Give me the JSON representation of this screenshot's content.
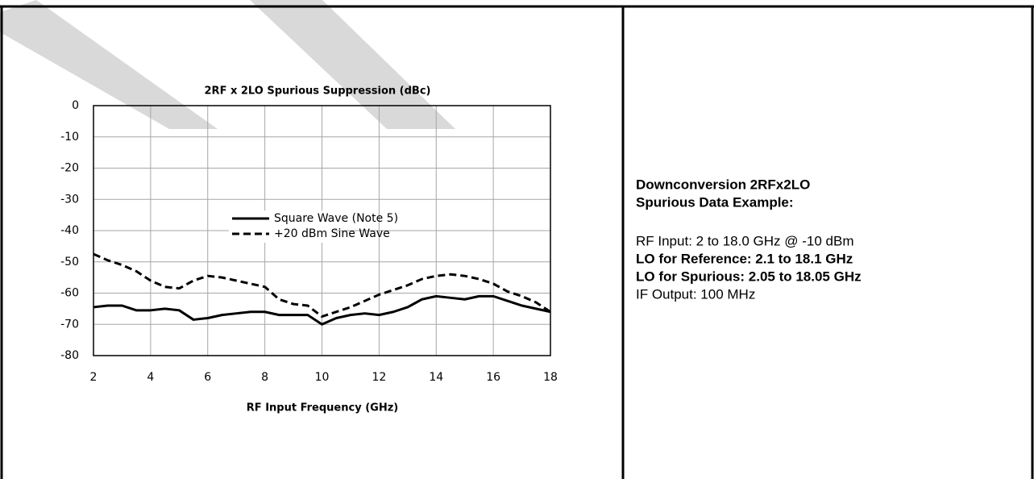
{
  "chart_data": {
    "type": "line",
    "title": "2RF x 2LO Spurious Suppression (dBc)",
    "xlabel": "RF Input Frequency (GHz)",
    "x": [
      2,
      2.5,
      3,
      3.5,
      4,
      4.5,
      5,
      5.5,
      6,
      6.5,
      7,
      7.5,
      8,
      8.5,
      9,
      9.5,
      10,
      10.5,
      11,
      11.5,
      12,
      12.5,
      13,
      13.5,
      14,
      14.5,
      15,
      15.5,
      16,
      16.5,
      17,
      17.5,
      18
    ],
    "series": [
      {
        "name": "Square Wave (Note 5)",
        "color": "#000000",
        "dash": false,
        "values": [
          -64.5,
          -64,
          -64,
          -65.5,
          -65.5,
          -65,
          -65.5,
          -68.5,
          -68,
          -67,
          -66.5,
          -66,
          -66,
          -67,
          -67,
          -67,
          -70,
          -68,
          -67,
          -66.5,
          -67,
          -66,
          -64.5,
          -62,
          -61,
          -61.5,
          -62,
          -61,
          -61,
          -62.5,
          -64,
          -65,
          -66
        ]
      },
      {
        "name": "+20 dBm Sine Wave",
        "color": "#000000",
        "dash": true,
        "values": [
          -47.5,
          -49.5,
          -51,
          -53,
          -56,
          -58,
          -58.5,
          -56,
          -54.5,
          -55,
          -56,
          -57,
          -58,
          -62,
          -63.5,
          -64,
          -67.5,
          -66,
          -64.5,
          -62.5,
          -60.5,
          -59,
          -57.5,
          -55.5,
          -54.5,
          -54,
          -54.5,
          -55.5,
          -57,
          -59.5,
          -61,
          -63,
          -66
        ]
      }
    ],
    "xlim": [
      2,
      18
    ],
    "xticks": [
      2,
      4,
      6,
      8,
      10,
      12,
      14,
      16,
      18
    ],
    "ylim": [
      -80,
      0
    ],
    "yticks": [
      0,
      -10,
      -20,
      -30,
      -40,
      -50,
      -60,
      -70,
      -80
    ],
    "grid": true
  },
  "panel": {
    "heading": [
      "Downconversion 2RFx2LO",
      "Spurious Data Example:"
    ],
    "lines": [
      {
        "text": "RF Input: 2 to 18.0 GHz @ -10 dBm",
        "bold": false
      },
      {
        "text": "LO for Reference: 2.1 to 18.1 GHz",
        "bold": true
      },
      {
        "text": "LO for Spurious: 2.05 to 18.05 GHz",
        "bold": true
      },
      {
        "text": "IF Output: 100 MHz",
        "bold": false
      }
    ]
  }
}
